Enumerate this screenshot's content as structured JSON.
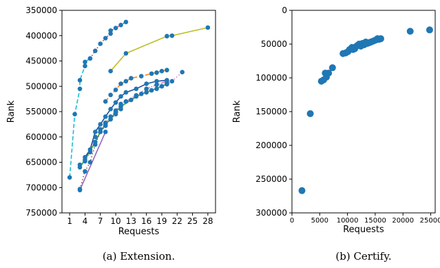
{
  "chart_data": [
    {
      "type": "scatter",
      "xlabel": "Requests",
      "ylabel": "Rank",
      "caption": "(a) Extension.",
      "xlim": [
        -0.5,
        29.5
      ],
      "ylim": [
        750000,
        350000
      ],
      "y_inverted": true,
      "x_ticks": [
        1,
        4,
        7,
        10,
        13,
        16,
        19,
        22,
        25,
        28
      ],
      "y_ticks": [
        350000,
        400000,
        450000,
        500000,
        550000,
        600000,
        650000,
        700000,
        750000
      ],
      "grid": false,
      "series": [
        {
          "style": "dashed",
          "color": "#17becf",
          "points": [
            [
              1,
              680000
            ],
            [
              2,
              555000
            ],
            [
              3,
              505000
            ],
            [
              3,
              488000
            ],
            [
              4,
              460000
            ],
            [
              4,
              452000
            ],
            [
              5,
              445000
            ]
          ]
        },
        {
          "style": "dotted",
          "color": "#d62728",
          "points": [
            [
              5,
              445000
            ],
            [
              6,
              430000
            ],
            [
              7,
              416000
            ],
            [
              8,
              405000
            ],
            [
              9,
              396000
            ],
            [
              9,
              390000
            ],
            [
              10,
              385000
            ],
            [
              11,
              379000
            ],
            [
              12,
              373000
            ]
          ]
        },
        {
          "style": "solid",
          "color": "#bcbd22",
          "points": [
            [
              9,
              470000
            ],
            [
              12,
              435000
            ],
            [
              20,
              401000
            ],
            [
              21,
              400000
            ],
            [
              28,
              384000
            ]
          ]
        },
        {
          "style": "dashed",
          "color": "#ff7f0e",
          "points": [
            [
              8,
              530000
            ],
            [
              9,
              517000
            ],
            [
              10,
              507000
            ],
            [
              11,
              495000
            ],
            [
              12,
              490000
            ],
            [
              13,
              484000
            ],
            [
              15,
              480000
            ],
            [
              17,
              475000
            ],
            [
              18,
              473000
            ],
            [
              19,
              470000
            ],
            [
              20,
              468000
            ]
          ]
        },
        {
          "style": "dotted",
          "color": "#e377c2",
          "points": [
            [
              3,
              655000
            ],
            [
              4,
              648000
            ],
            [
              5,
              630000
            ],
            [
              6,
              600000
            ],
            [
              7,
              585000
            ],
            [
              8,
              572000
            ],
            [
              9,
              560000
            ],
            [
              10,
              548000
            ],
            [
              11,
              535000
            ],
            [
              12,
              530000
            ],
            [
              14,
              520000
            ],
            [
              16,
              512000
            ],
            [
              18,
              505000
            ],
            [
              19,
              500000
            ],
            [
              20,
              496000
            ],
            [
              21,
              490000
            ],
            [
              23,
              472000
            ]
          ]
        },
        {
          "style": "solid",
          "color": "#2ca02c",
          "points": [
            [
              3,
              660000
            ],
            [
              4,
              645000
            ],
            [
              6,
              610000
            ],
            [
              7,
              590000
            ],
            [
              8,
              575000
            ],
            [
              9,
              565000
            ],
            [
              10,
              550000
            ],
            [
              11,
              540000
            ],
            [
              13,
              527000
            ],
            [
              15,
              515000
            ],
            [
              17,
              508000
            ],
            [
              19,
              500000
            ],
            [
              20,
              495000
            ]
          ]
        },
        {
          "style": "solid",
          "color": "#1f4e9c",
          "points": [
            [
              4,
              640000
            ],
            [
              5,
              625000
            ],
            [
              6,
              590000
            ],
            [
              7,
              575000
            ],
            [
              8,
              560000
            ],
            [
              9,
              545000
            ],
            [
              10,
              532000
            ],
            [
              11,
              520000
            ],
            [
              12,
              512000
            ],
            [
              14,
              505000
            ],
            [
              16,
              495000
            ],
            [
              18,
              490000
            ],
            [
              20,
              488000
            ]
          ]
        },
        {
          "style": "dashdot",
          "color": "#e377c2",
          "points": [
            [
              12,
              530000
            ],
            [
              14,
              518000
            ],
            [
              16,
              505000
            ],
            [
              18,
              497000
            ],
            [
              20,
              490000
            ]
          ]
        },
        {
          "style": "dotted",
          "color": "#8c564b",
          "points": [
            [
              3,
              703000
            ],
            [
              4,
              668000
            ],
            [
              5,
              650000
            ],
            [
              6,
              615000
            ],
            [
              7,
              590000
            ],
            [
              8,
              578000
            ],
            [
              9,
              565000
            ],
            [
              10,
              555000
            ],
            [
              11,
              545000
            ]
          ]
        },
        {
          "style": "solid",
          "color": "#9467bd",
          "points": [
            [
              3,
              705000
            ],
            [
              8,
              590000
            ]
          ]
        }
      ]
    },
    {
      "type": "scatter",
      "xlabel": "Requests",
      "ylabel": "Rank",
      "caption": "(b) Certify.",
      "xlim": [
        0,
        25800
      ],
      "ylim": [
        300000,
        0
      ],
      "y_inverted": true,
      "x_ticks": [
        0,
        5000,
        10000,
        15000,
        20000,
        25000
      ],
      "y_ticks": [
        0,
        50000,
        100000,
        150000,
        200000,
        250000,
        300000
      ],
      "grid": false,
      "color": "#1f77b4",
      "points": [
        [
          1800,
          267000
        ],
        [
          3300,
          153000
        ],
        [
          5300,
          105000
        ],
        [
          5700,
          103000
        ],
        [
          6000,
          93000
        ],
        [
          6200,
          99000
        ],
        [
          6600,
          93000
        ],
        [
          7300,
          85000
        ],
        [
          9200,
          64000
        ],
        [
          9700,
          63000
        ],
        [
          10100,
          61000
        ],
        [
          10400,
          58000
        ],
        [
          10800,
          55000
        ],
        [
          11000,
          58000
        ],
        [
          11300,
          57000
        ],
        [
          11500,
          54000
        ],
        [
          11800,
          52000
        ],
        [
          12100,
          50000
        ],
        [
          12400,
          53000
        ],
        [
          12700,
          49000
        ],
        [
          13000,
          51000
        ],
        [
          13300,
          47000
        ],
        [
          13600,
          49000
        ],
        [
          13900,
          48000
        ],
        [
          14200,
          47000
        ],
        [
          14500,
          46000
        ],
        [
          14800,
          45000
        ],
        [
          15100,
          44000
        ],
        [
          15400,
          42000
        ],
        [
          15700,
          43000
        ],
        [
          16000,
          42000
        ],
        [
          21300,
          31000
        ],
        [
          24800,
          29000
        ]
      ]
    }
  ]
}
